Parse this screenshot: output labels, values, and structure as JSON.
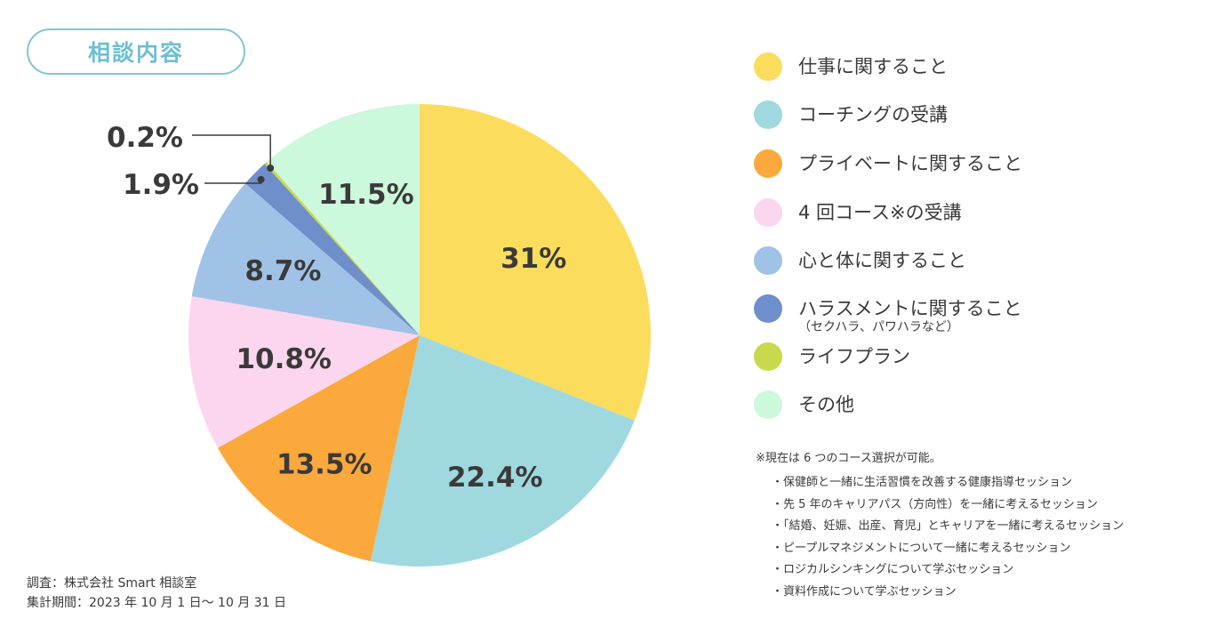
{
  "title": "相談内容",
  "chart_data": {
    "type": "pie",
    "title": "相談内容",
    "categories": [
      "仕事に関すること",
      "コーチングの受講",
      "プライベートに関すること",
      "4 回コース※の受講",
      "心と体に関すること",
      "ハラスメントに関すること",
      "ライフプラン",
      "その他"
    ],
    "values": [
      31,
      22.4,
      13.5,
      10.8,
      8.7,
      1.9,
      0.2,
      11.5
    ],
    "labels": [
      "31%",
      "22.4%",
      "13.5%",
      "10.8%",
      "8.7%",
      "1.9%",
      "0.2%",
      "11.5%"
    ],
    "colors": [
      "#fcdc5c",
      "#9fd9df",
      "#fba83c",
      "#fcd6ee",
      "#a0c2e6",
      "#6f8fcb",
      "#c8d94e",
      "#ccf8dc"
    ],
    "start": "12 o'clock, clockwise",
    "legend_position": "right"
  },
  "legend": {
    "items": [
      {
        "label": "仕事に関すること"
      },
      {
        "label": "コーチングの受講"
      },
      {
        "label": "プライベートに関すること"
      },
      {
        "label": "4 回コース※の受講"
      },
      {
        "label": "心と体に関すること"
      },
      {
        "label": "ハラスメントに関すること",
        "sub": "（セクハラ、パワハラなど）"
      },
      {
        "label": "ライフプラン"
      },
      {
        "label": "その他"
      }
    ]
  },
  "notes": {
    "head": "※現在は 6 つのコース選択が可能。",
    "items": [
      "・保健師と一緒に生活習慣を改善する健康指導セッション",
      "・先 5 年のキャリアパス（方向性）を一緒に考えるセッション",
      "・「結婚、妊娠、出産、育児」とキャリアを一緒に考えるセッション",
      "・ピープルマネジメントについて一緒に考えるセッション",
      "・ロジカルシンキングについて学ぶセッション",
      "・資料作成について学ぶセッション"
    ]
  },
  "footer": {
    "survey": "調査：株式会社 Smart 相談室",
    "period": "集計期間：2023 年 10 月 1 日〜 10 月 31 日"
  }
}
